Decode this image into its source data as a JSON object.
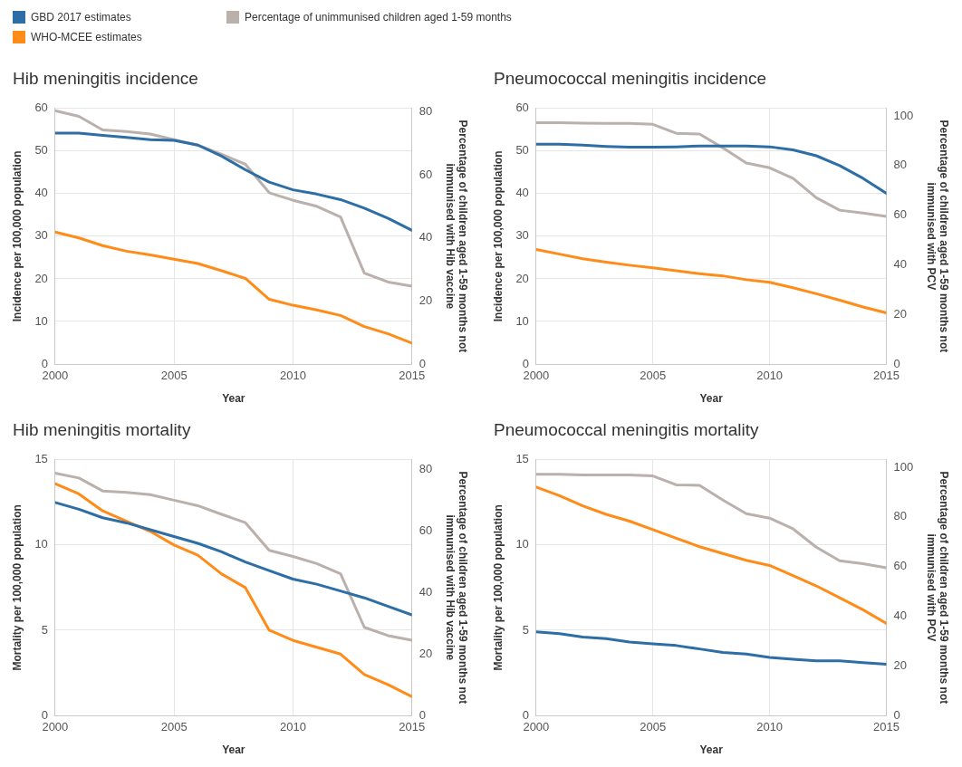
{
  "chart_data": [
    {
      "type": "line",
      "title": "Hib meningitis incidence",
      "xlabel": "Year",
      "ylabel": "Incidence per 100,000 population",
      "y2label": "Percentage of children aged 1-59 months not immunised with Hib vaccine",
      "legend": "top",
      "grid": true,
      "x": [
        2000,
        2001,
        2002,
        2003,
        2004,
        2005,
        2006,
        2007,
        2008,
        2009,
        2010,
        2011,
        2012,
        2013,
        2014,
        2015
      ],
      "xlim": [
        2000,
        2015
      ],
      "xticks": [
        2000,
        2005,
        2010,
        2015
      ],
      "ylim": [
        0,
        60
      ],
      "yticks": [
        0,
        10,
        20,
        30,
        40,
        50,
        60
      ],
      "y2lim": [
        0,
        81
      ],
      "y2ticks": [
        0,
        20,
        40,
        60,
        80
      ],
      "series": [
        {
          "name": "GBD 2017 estimates",
          "color": "#2c6ea5",
          "values": [
            54.2,
            54.2,
            53.7,
            53.2,
            52.7,
            52.5,
            51.4,
            48.8,
            45.6,
            42.7,
            40.9,
            39.9,
            38.6,
            36.6,
            34.2,
            31.4
          ]
        },
        {
          "name": "WHO-MCEE estimates",
          "color": "#ff8b19",
          "values": [
            31.0,
            29.6,
            27.8,
            26.5,
            25.6,
            24.6,
            23.6,
            21.9,
            20.1,
            15.2,
            13.8,
            12.7,
            11.4,
            8.8,
            7.1,
            4.9
          ]
        },
        {
          "name": "Percentage of unimmunised children aged 1-59 months",
          "color": "#bab0ac",
          "axis": "y2",
          "values": [
            80.3,
            78.5,
            74.2,
            73.7,
            72.9,
            71.1,
            69.4,
            66.5,
            63.3,
            54.3,
            51.9,
            50.0,
            46.6,
            28.8,
            26.0,
            24.7
          ]
        }
      ]
    },
    {
      "type": "line",
      "title": "Pneumococcal meningitis incidence",
      "xlabel": "Year",
      "ylabel": "Incidence per 100,000 population",
      "y2label": "Percentage of children aged 1-59 months not immunised with PCV",
      "grid": true,
      "x": [
        2000,
        2001,
        2002,
        2003,
        2004,
        2005,
        2006,
        2007,
        2008,
        2009,
        2010,
        2011,
        2012,
        2013,
        2014,
        2015
      ],
      "xlim": [
        2000,
        2015
      ],
      "xticks": [
        2000,
        2005,
        2010,
        2015
      ],
      "ylim": [
        0,
        60
      ],
      "yticks": [
        0,
        10,
        20,
        30,
        40,
        50,
        60
      ],
      "y2lim": [
        0,
        103
      ],
      "y2ticks": [
        0,
        20,
        40,
        60,
        80,
        100
      ],
      "series": [
        {
          "color": "#2c6ea5",
          "values": [
            51.6,
            51.6,
            51.4,
            51.1,
            50.9,
            50.9,
            51.0,
            51.2,
            51.2,
            51.2,
            51.0,
            50.3,
            48.9,
            46.6,
            43.6,
            40.1
          ]
        },
        {
          "color": "#ff8b19",
          "values": [
            26.9,
            25.8,
            24.7,
            23.9,
            23.2,
            22.6,
            21.9,
            21.2,
            20.7,
            19.8,
            19.2,
            17.9,
            16.5,
            15.0,
            13.4,
            12.0
          ]
        },
        {
          "color": "#bab0ac",
          "axis": "y2",
          "values": [
            97.3,
            97.3,
            97.1,
            97.0,
            97.0,
            96.6,
            93.0,
            92.7,
            87.1,
            81.0,
            79.1,
            74.9,
            67.0,
            62.0,
            60.9,
            59.5
          ]
        }
      ]
    },
    {
      "type": "line",
      "title": "Hib meningitis mortality",
      "xlabel": "Year",
      "ylabel": "Mortality per 100,000 population",
      "y2label": "Percentage of children aged 1-59 months not immunised with Hib vaccine",
      "grid": true,
      "x": [
        2000,
        2001,
        2002,
        2003,
        2004,
        2005,
        2006,
        2007,
        2008,
        2009,
        2010,
        2011,
        2012,
        2013,
        2014,
        2015
      ],
      "xlim": [
        2000,
        2015
      ],
      "xticks": [
        2000,
        2005,
        2010,
        2015
      ],
      "ylim": [
        0,
        15
      ],
      "yticks": [
        0,
        5,
        10,
        15
      ],
      "y2lim": [
        0,
        83
      ],
      "y2ticks": [
        0,
        20,
        40,
        60,
        80
      ],
      "series": [
        {
          "color": "#2c6ea5",
          "values": [
            12.5,
            12.1,
            11.6,
            11.3,
            10.9,
            10.5,
            10.1,
            9.6,
            9.0,
            8.5,
            8.0,
            7.7,
            7.3,
            6.9,
            6.4,
            5.9
          ]
        },
        {
          "color": "#ff8b19",
          "values": [
            13.6,
            13.0,
            12.0,
            11.4,
            10.8,
            10.0,
            9.4,
            8.3,
            7.5,
            5.0,
            4.4,
            4.0,
            3.6,
            2.4,
            1.8,
            1.1
          ]
        },
        {
          "color": "#bab0ac",
          "axis": "y2",
          "values": [
            78.7,
            77.1,
            72.9,
            72.4,
            71.7,
            69.9,
            68.1,
            65.3,
            62.6,
            53.6,
            51.6,
            49.3,
            46.0,
            28.6,
            25.9,
            24.4
          ]
        }
      ]
    },
    {
      "type": "line",
      "title": "Pneumococcal meningitis mortality",
      "xlabel": "Year",
      "ylabel": "Mortality per 100,000 population",
      "y2label": "Percentage of children aged 1-59 months not immunised with PCV",
      "grid": true,
      "x": [
        2000,
        2001,
        2002,
        2003,
        2004,
        2005,
        2006,
        2007,
        2008,
        2009,
        2010,
        2011,
        2012,
        2013,
        2014,
        2015
      ],
      "xlim": [
        2000,
        2015
      ],
      "xticks": [
        2000,
        2005,
        2010,
        2015
      ],
      "ylim": [
        0,
        15
      ],
      "yticks": [
        0,
        5,
        10,
        15
      ],
      "y2lim": [
        0,
        103
      ],
      "y2ticks": [
        0,
        20,
        40,
        60,
        80,
        100
      ],
      "series": [
        {
          "color": "#2c6ea5",
          "values": [
            4.9,
            4.8,
            4.6,
            4.5,
            4.3,
            4.2,
            4.1,
            3.9,
            3.7,
            3.6,
            3.4,
            3.3,
            3.2,
            3.2,
            3.1,
            3.0
          ]
        },
        {
          "color": "#ff8b19",
          "values": [
            13.4,
            12.9,
            12.3,
            11.8,
            11.4,
            10.9,
            10.4,
            9.9,
            9.5,
            9.1,
            8.8,
            8.2,
            7.6,
            6.9,
            6.2,
            5.4
          ]
        },
        {
          "color": "#bab0ac",
          "axis": "y2",
          "values": [
            97.2,
            97.2,
            96.9,
            96.9,
            96.9,
            96.5,
            92.9,
            92.7,
            86.8,
            81.3,
            79.5,
            75.2,
            67.8,
            62.3,
            61.1,
            59.5
          ]
        }
      ]
    }
  ]
}
